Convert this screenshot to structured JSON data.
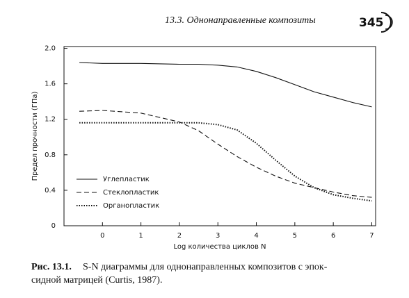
{
  "header": {
    "running_title": "13.3. Однонаправленные композиты",
    "page_number": "345"
  },
  "chart_data": {
    "type": "line",
    "y_label": "Предел прочности (ГПа)",
    "x_label": "Log количества циклов N",
    "x": [
      -0.6,
      0,
      1,
      2,
      2.5,
      3,
      3.5,
      4,
      4.5,
      5,
      5.5,
      6,
      6.5,
      7
    ],
    "series": [
      {
        "name": "Углепластик",
        "color": "#111111",
        "style": "solid",
        "values": [
          1.84,
          1.83,
          1.83,
          1.82,
          1.82,
          1.81,
          1.79,
          1.74,
          1.67,
          1.59,
          1.51,
          1.45,
          1.39,
          1.34
        ]
      },
      {
        "name": "Стеклопластик",
        "color": "#111111",
        "style": "dashed",
        "values": [
          1.29,
          1.3,
          1.27,
          1.17,
          1.07,
          0.92,
          0.78,
          0.66,
          0.56,
          0.48,
          0.43,
          0.38,
          0.34,
          0.32
        ]
      },
      {
        "name": "Органопластик",
        "color": "#111111",
        "style": "dotted",
        "values": [
          1.16,
          1.16,
          1.16,
          1.16,
          1.16,
          1.14,
          1.08,
          0.93,
          0.74,
          0.56,
          0.43,
          0.35,
          0.31,
          0.28
        ]
      }
    ],
    "xlim": [
      -1,
      7.1
    ],
    "ylim": [
      0,
      2.02
    ],
    "xticks": [
      0,
      1,
      2,
      3,
      4,
      5,
      6,
      7
    ],
    "yticks": [
      0,
      0.4,
      0.8,
      1.2,
      1.6,
      {
        "value": 2,
        "label": "2.0"
      }
    ],
    "grid": false,
    "legend": "lower left"
  },
  "caption": {
    "label": "Рис. 13.1.",
    "lines": [
      "S-N диаграммы для однонаправленных композитов с эпок-",
      "сидной матрицей (Curtis, 1987)."
    ]
  }
}
